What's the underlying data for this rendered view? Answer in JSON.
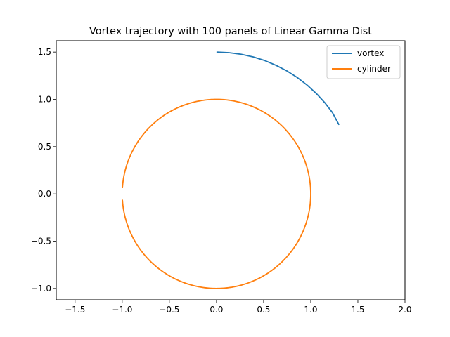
{
  "chart_data": {
    "type": "line",
    "title": "Vortex trajectory with 100 panels of Linear Gamma Dist",
    "xlabel": "",
    "ylabel": "",
    "xlim": [
      -1.7,
      2.0
    ],
    "ylim": [
      -1.12,
      1.62
    ],
    "xticks": [
      -1.5,
      -1.0,
      -0.5,
      0.0,
      0.5,
      1.0,
      1.5,
      2.0
    ],
    "xtick_labels": [
      "−1.5",
      "−1.0",
      "−0.5",
      "0.0",
      "0.5",
      "1.0",
      "1.5",
      "2.0"
    ],
    "yticks": [
      -1.0,
      -0.5,
      0.0,
      0.5,
      1.0,
      1.5
    ],
    "ytick_labels": [
      "−1.0",
      "−0.5",
      "0.0",
      "0.5",
      "1.0",
      "1.5"
    ],
    "grid": false,
    "legend_position": "top-right",
    "series": [
      {
        "name": "vortex",
        "color": "#1f77b4",
        "x": [
          0.0,
          0.131,
          0.26,
          0.388,
          0.513,
          0.634,
          0.75,
          0.86,
          0.964,
          1.061,
          1.15,
          1.23,
          1.3
        ],
        "y": [
          1.5,
          1.494,
          1.477,
          1.449,
          1.41,
          1.359,
          1.299,
          1.229,
          1.149,
          1.06,
          0.964,
          0.86,
          0.73
        ]
      },
      {
        "name": "cylinder",
        "color": "#ff7f0e",
        "shape": "circle",
        "center": [
          0.0,
          0.0
        ],
        "radius": 1.0,
        "gap_between_angles_deg": [
          176.5,
          183.5
        ]
      }
    ]
  }
}
